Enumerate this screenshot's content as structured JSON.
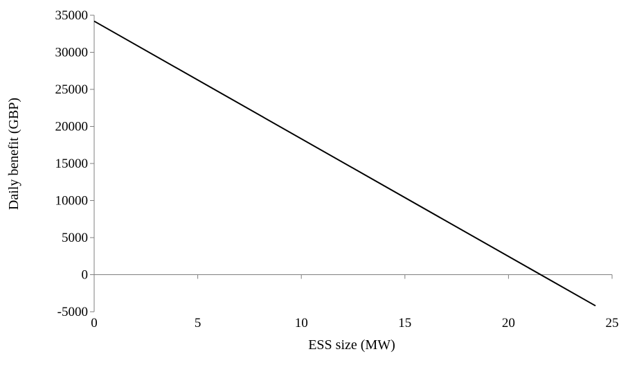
{
  "chart_data": {
    "type": "line",
    "title": "",
    "xlabel": "ESS size (MW)",
    "ylabel": "Daily benefit (GBP)",
    "xlim": [
      0,
      25
    ],
    "ylim": [
      -5000,
      35000
    ],
    "x_ticks": [
      "0",
      "5",
      "10",
      "15",
      "20",
      "25"
    ],
    "y_ticks": [
      "35000",
      "30000",
      "25000",
      "20000",
      "15000",
      "10000",
      "5000",
      "0",
      "-5000"
    ],
    "grid": false,
    "legend": "none",
    "series": [
      {
        "color": "#000000",
        "x": [
          0,
          24.2
        ],
        "y": [
          34200,
          -4200
        ]
      }
    ]
  }
}
